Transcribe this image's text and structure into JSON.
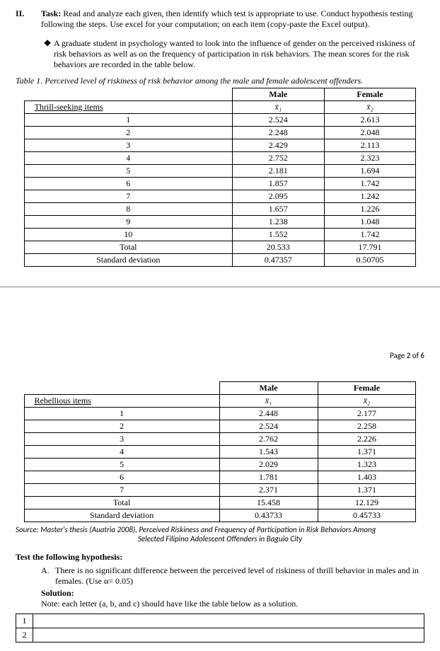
{
  "task": {
    "roman": "II.",
    "label": "Task:",
    "text": "Read and analyze each given, then identify which test is appropriate to use. Conduct hypothesis testing following the steps. Use excel for your computation; on each item (copy-paste the Excel output)."
  },
  "bullet": {
    "symbol": "❖",
    "text": "A graduate student in psychology wanted to look into the influence of gender on the perceived riskiness of risk behaviors as well as on the frequency of participation in risk behaviors. The mean scores for the risk behaviors are recorded in the table below."
  },
  "table1": {
    "caption": "Table 1. Perceived level of riskiness of risk behavior among the male and female adolescent offenders.",
    "row_header": "Thrill-seeking items",
    "col_male": "Male",
    "col_female": "Female",
    "xbar_male": "x̄₁",
    "xbar_female": "x̄₂",
    "rows": [
      {
        "n": "1",
        "m": "2.524",
        "f": "2.613"
      },
      {
        "n": "2",
        "m": "2.248",
        "f": "2.048"
      },
      {
        "n": "3",
        "m": "2.429",
        "f": "2.113"
      },
      {
        "n": "4",
        "m": "2.752",
        "f": "2.323"
      },
      {
        "n": "5",
        "m": "2.181",
        "f": "1.694"
      },
      {
        "n": "6",
        "m": "1.857",
        "f": "1.742"
      },
      {
        "n": "7",
        "m": "2.095",
        "f": "1.242"
      },
      {
        "n": "8",
        "m": "1.657",
        "f": "1.226"
      },
      {
        "n": "9",
        "m": "1.238",
        "f": "1.048"
      },
      {
        "n": "10",
        "m": "1.552",
        "f": "1.742"
      }
    ],
    "total_label": "Total",
    "total_m": "20.533",
    "total_f": "17.791",
    "sd_label": "Standard deviation",
    "sd_m": "0.47357",
    "sd_f": "0.50705"
  },
  "page_num": "Page 2 of 6",
  "table2": {
    "row_header": "Rebellious items",
    "col_male": "Male",
    "col_female": "Female",
    "xbar_male": "x̄₁",
    "xbar_female": "x̄₂",
    "rows": [
      {
        "n": "1",
        "m": "2.448",
        "f": "2.177"
      },
      {
        "n": "2",
        "m": "2.524",
        "f": "2.258"
      },
      {
        "n": "3",
        "m": "2.762",
        "f": "2.226"
      },
      {
        "n": "4",
        "m": "1.543",
        "f": "1.371"
      },
      {
        "n": "5",
        "m": "2.029",
        "f": "1.323"
      },
      {
        "n": "6",
        "m": "1.781",
        "f": "1.403"
      },
      {
        "n": "7",
        "m": "2.371",
        "f": "1.371"
      }
    ],
    "total_label": "Total",
    "total_m": "15.458",
    "total_f": "12.129",
    "sd_label": "Standard deviation",
    "sd_m": "0.43733",
    "sd_f": "0.45733"
  },
  "source": {
    "line1": "Source: Master's thesis (Auatria 2008), Perceived Riskiness and Frequency of Participation in Risk Behaviors Among",
    "line2": "Selected Filipino Adolescent Offenders in Baguio City"
  },
  "test": {
    "header": "Test the following hypothesis:",
    "item_a_letter": "A.",
    "item_a_text": "There is no significant difference between the perceived level of riskiness of thrill behavior in males and in females. (Use α= 0.05)",
    "solution_label": "Solution:",
    "note": "Note: each letter (a, b, and c) should have like the table below as a solution."
  },
  "solution_rows": {
    "r1": "1",
    "r2": "2"
  }
}
